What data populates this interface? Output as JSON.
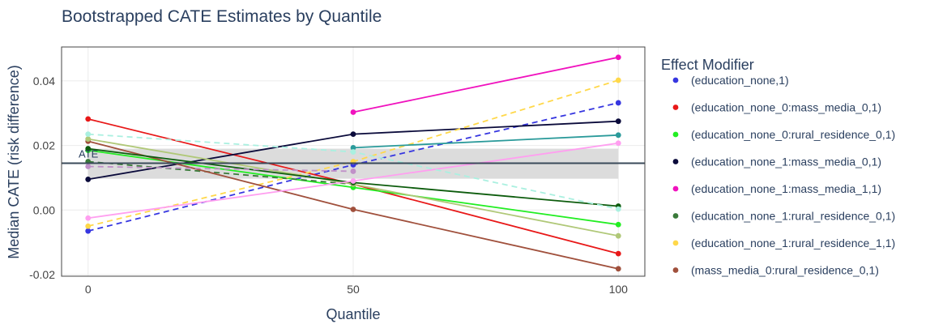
{
  "chart_data": {
    "type": "line",
    "title": "Bootstrapped CATE Estimates by Quantile",
    "xlabel": "Quantile",
    "ylabel": "Median CATE (risk difference)",
    "x": [
      0,
      50,
      100
    ],
    "xticks": [
      "0",
      "50",
      "100"
    ],
    "yticks": [
      "-0.02",
      "0.00",
      "0.02",
      "0.04"
    ],
    "ytick_values": [
      -0.02,
      0,
      0.02,
      0.04
    ],
    "xlim": [
      -5,
      105
    ],
    "ylim": [
      -0.0205,
      0.0505
    ],
    "grid": true,
    "legend_title": "Effect Modifier",
    "legend_position": "right",
    "ate": {
      "label": "ATE",
      "value": 0.0145,
      "band": [
        0.0097,
        0.019
      ],
      "band_color": "#dcdcdc",
      "line_color": "#3a4a5a"
    },
    "series": [
      {
        "name": "(education_none,1)",
        "color": "#3636e0",
        "dash": true,
        "values": [
          -0.0065,
          0.014,
          0.0332
        ]
      },
      {
        "name": "(education_none_0:mass_media_0,1)",
        "color": "#e81818",
        "dash": false,
        "values": [
          0.0282,
          0.008,
          -0.0135
        ]
      },
      {
        "name": "(education_none_0:rural_residence_0,1)",
        "color": "#22ee22",
        "dash": false,
        "values": [
          0.0185,
          0.007,
          -0.0045
        ]
      },
      {
        "name": "(education_none_1:mass_media_0,1)",
        "color": "#0b0b3b",
        "dash": false,
        "values": [
          0.0095,
          0.0235,
          0.0275
        ]
      },
      {
        "name": "(education_none_1:mass_media_1,1)",
        "color": "#f012be",
        "dash": false,
        "values": [
          null,
          0.0303,
          0.0473
        ]
      },
      {
        "name": "(education_none_1:rural_residence_0,1)",
        "color": "#3a7a3a",
        "dash": true,
        "values": [
          0.015,
          0.008,
          null
        ]
      },
      {
        "name": "(education_none_1:rural_residence_1,1)",
        "color": "#ffd84a",
        "dash": true,
        "values": [
          -0.005,
          0.015,
          0.0402
        ]
      },
      {
        "name": "(mass_media_0:rural_residence_0,1)",
        "color": "#a0503c",
        "dash": false,
        "values": [
          0.0213,
          0.0002,
          -0.0182
        ]
      },
      {
        "name": "",
        "color": "#b0c878",
        "dash": false,
        "values": [
          0.022,
          0.008,
          -0.008
        ]
      },
      {
        "name": "",
        "color": "#0d5c0d",
        "dash": false,
        "values": [
          0.019,
          0.0085,
          0.0012
        ]
      },
      {
        "name": "",
        "color": "#2a9a9a",
        "dash": false,
        "values": [
          null,
          0.0193,
          0.0232
        ]
      },
      {
        "name": "",
        "color": "#ff9ff0",
        "dash": false,
        "values": [
          -0.0025,
          0.009,
          0.0207
        ]
      },
      {
        "name": "",
        "color": "#aaf0e0",
        "dash": true,
        "values": [
          0.0235,
          0.018,
          0.0003
        ]
      },
      {
        "name": "",
        "color": "#c090c8",
        "dash": true,
        "values": [
          0.0135,
          0.012,
          null
        ]
      }
    ]
  }
}
